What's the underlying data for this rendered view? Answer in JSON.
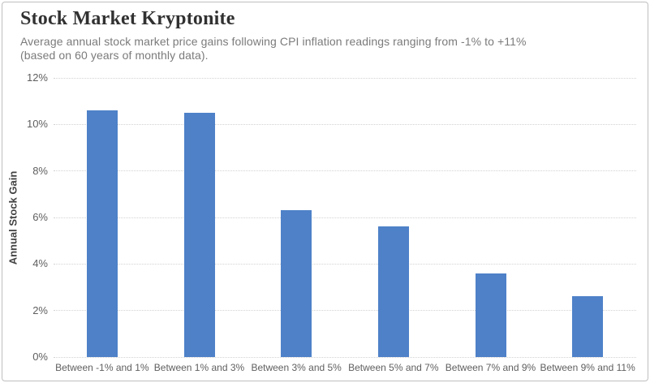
{
  "header": {
    "title": "Stock Market Kryptonite",
    "subtitle_lines": [
      "Average annual stock market price gains following CPI inflation readings ranging from -1% to +11%",
      "(based on 60 years of monthly data)."
    ]
  },
  "chart_data": {
    "type": "bar",
    "title": "Stock Market Kryptonite",
    "subtitle": "Average annual stock market price gains following CPI inflation readings ranging from -1% to +11% (based on 60 years of monthly data).",
    "categories": [
      "Between -1% and 1%",
      "Between 1% and 3%",
      "Between 3% and 5%",
      "Between 5% and 7%",
      "Between 7% and 9%",
      "Between 9% and 11%"
    ],
    "values": [
      10.6,
      10.5,
      6.3,
      5.6,
      3.6,
      2.6
    ],
    "xlabel": "",
    "ylabel": "Annual Stock Gain",
    "ylim": [
      0,
      12
    ],
    "ytick_step": 2,
    "ytick_suffix": "%",
    "grid": "horizontal dotted gridlines, on",
    "legend_position": "none",
    "bar_color": "#4e81c8",
    "gridline_color": "#d2d2d2"
  }
}
